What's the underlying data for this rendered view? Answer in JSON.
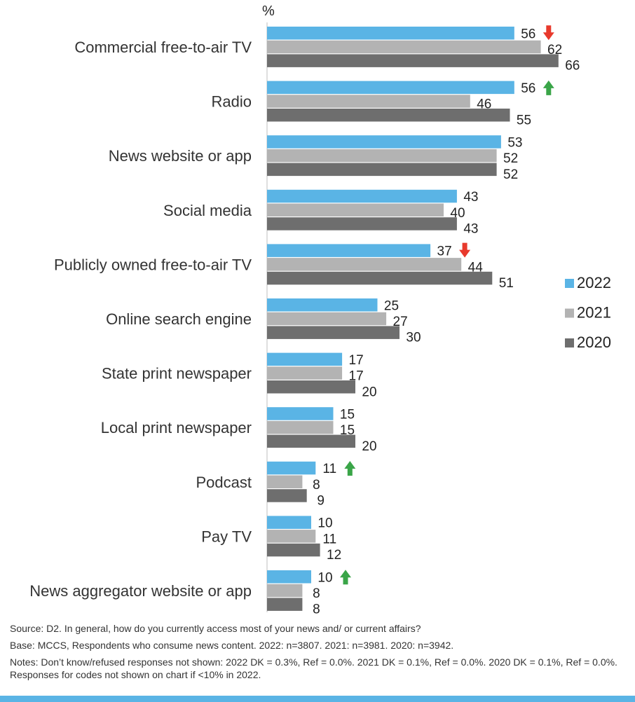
{
  "chart_data": {
    "type": "bar",
    "orientation": "horizontal",
    "unit_label": "%",
    "categories": [
      "Commercial free-to-air TV",
      "Radio",
      "News website or app",
      "Social media",
      "Publicly owned free-to-air TV",
      "Online search engine",
      "State print newspaper",
      "Local print newspaper",
      "Podcast",
      "Pay TV",
      "News aggregator website or app"
    ],
    "series": [
      {
        "name": "2022",
        "color": "#5ab4e5",
        "values": [
          56,
          56,
          53,
          43,
          37,
          25,
          17,
          15,
          11,
          10,
          10
        ]
      },
      {
        "name": "2021",
        "color": "#b3b3b3",
        "values": [
          62,
          46,
          52,
          40,
          44,
          27,
          17,
          15,
          8,
          11,
          8
        ]
      },
      {
        "name": "2020",
        "color": "#6e6e6e",
        "values": [
          66,
          55,
          52,
          43,
          51,
          30,
          20,
          20,
          9,
          12,
          8
        ]
      }
    ],
    "change_indicators": [
      {
        "category": "Commercial free-to-air TV",
        "series": "2022",
        "direction": "down",
        "color": "#e8392c"
      },
      {
        "category": "Radio",
        "series": "2022",
        "direction": "up",
        "color": "#3aa548"
      },
      {
        "category": "Publicly owned free-to-air TV",
        "series": "2022",
        "direction": "down",
        "color": "#e8392c"
      },
      {
        "category": "Podcast",
        "series": "2022",
        "direction": "up",
        "color": "#3aa548"
      },
      {
        "category": "News aggregator website or app",
        "series": "2022",
        "direction": "up",
        "color": "#3aa548"
      }
    ],
    "xlim": [
      0,
      70
    ],
    "legend_position": "right",
    "grid": false
  },
  "notes": {
    "source": "Source: D2. In general, how do you currently access most of your news and/ or current affairs?",
    "base": "Base: MCCS, Respondents who consume news content. 2022: n=3807. 2021: n=3981. 2020: n=3942.",
    "notes": "Notes: Don’t know/refused responses not shown: 2022 DK = 0.3%, Ref = 0.0%. 2021 DK = 0.1%, Ref = 0.0%. 2020 DK = 0.1%, Ref = 0.0%. Responses for codes not shown on chart if <10% in 2022."
  },
  "colors": {
    "bottom_band": "#5ab4e5"
  }
}
